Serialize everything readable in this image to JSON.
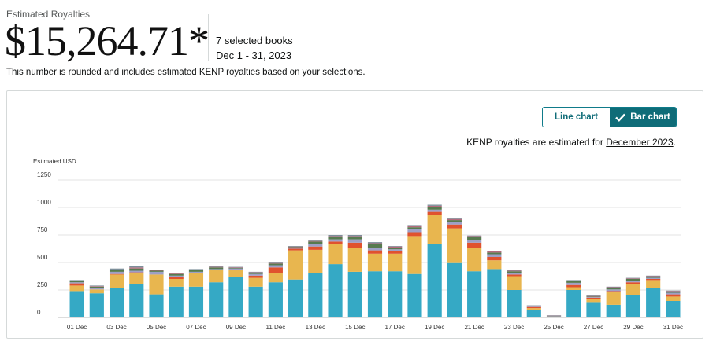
{
  "header": {
    "label": "Estimated Royalties",
    "amount": "$15,264.71*",
    "books": "7 selected books",
    "date_range": "Dec 1 - 31, 2023",
    "note": "This number is rounded and includes estimated KENP royalties based on your selections."
  },
  "toggle": {
    "line_label": "Line chart",
    "bar_label": "Bar chart",
    "active": "Bar chart"
  },
  "kenp_note": {
    "prefix": "KENP royalties are estimated for ",
    "link": "December 2023",
    "suffix": "."
  },
  "colors": {
    "teal_accent": "#0f6c78",
    "series": [
      "#35a9c5",
      "#e8b64f",
      "#e0522e",
      "#9d9fc6",
      "#577a4f",
      "#b46b7e",
      "#7c8f9a"
    ]
  },
  "chart_data": {
    "type": "bar",
    "stacked": true,
    "ylabel": "Estimated USD",
    "ylim": [
      0,
      1250
    ],
    "yticks": [
      0,
      250,
      500,
      750,
      1000,
      1250
    ],
    "grid": true,
    "categories": [
      "01 Dec",
      "02 Dec",
      "03 Dec",
      "04 Dec",
      "05 Dec",
      "06 Dec",
      "07 Dec",
      "08 Dec",
      "09 Dec",
      "10 Dec",
      "11 Dec",
      "12 Dec",
      "13 Dec",
      "14 Dec",
      "15 Dec",
      "16 Dec",
      "17 Dec",
      "18 Dec",
      "19 Dec",
      "20 Dec",
      "21 Dec",
      "22 Dec",
      "23 Dec",
      "24 Dec",
      "25 Dec",
      "26 Dec",
      "27 Dec",
      "28 Dec",
      "29 Dec",
      "30 Dec",
      "31 Dec"
    ],
    "xtick_labels": [
      "01 Dec",
      "03 Dec",
      "05 Dec",
      "07 Dec",
      "09 Dec",
      "11 Dec",
      "13 Dec",
      "15 Dec",
      "17 Dec",
      "19 Dec",
      "21 Dec",
      "23 Dec",
      "25 Dec",
      "27 Dec",
      "29 Dec",
      "31 Dec"
    ],
    "series": [
      {
        "color": "#35a9c5",
        "values": [
          240,
          220,
          270,
          300,
          210,
          280,
          280,
          320,
          370,
          280,
          320,
          345,
          400,
          485,
          415,
          420,
          420,
          395,
          670,
          495,
          420,
          440,
          250,
          70,
          5,
          250,
          140,
          115,
          200,
          265,
          150
        ]
      },
      {
        "color": "#e8b64f",
        "values": [
          50,
          35,
          120,
          100,
          180,
          70,
          120,
          110,
          60,
          80,
          85,
          265,
          215,
          180,
          220,
          160,
          160,
          345,
          260,
          315,
          215,
          80,
          125,
          15,
          3,
          25,
          30,
          120,
          100,
          75,
          40
        ]
      },
      {
        "color": "#e0522e",
        "values": [
          20,
          0,
          5,
          10,
          0,
          20,
          0,
          0,
          5,
          20,
          50,
          15,
          30,
          25,
          45,
          30,
          20,
          35,
          30,
          35,
          45,
          30,
          15,
          10,
          0,
          20,
          10,
          5,
          20,
          10,
          20
        ]
      },
      {
        "color": "#9d9fc6",
        "values": [
          10,
          15,
          20,
          15,
          25,
          10,
          15,
          10,
          10,
          15,
          20,
          5,
          25,
          20,
          30,
          25,
          20,
          25,
          20,
          20,
          25,
          25,
          15,
          5,
          4,
          20,
          5,
          15,
          15,
          10,
          15
        ]
      },
      {
        "color": "#577a4f",
        "values": [
          10,
          10,
          15,
          20,
          10,
          15,
          15,
          15,
          5,
          10,
          15,
          10,
          20,
          20,
          20,
          30,
          15,
          20,
          25,
          20,
          25,
          15,
          15,
          5,
          3,
          15,
          5,
          15,
          15,
          10,
          10
        ]
      },
      {
        "color": "#b46b7e",
        "values": [
          5,
          5,
          5,
          10,
          5,
          5,
          5,
          5,
          5,
          5,
          5,
          5,
          5,
          10,
          10,
          10,
          10,
          10,
          10,
          10,
          10,
          10,
          5,
          3,
          2,
          5,
          5,
          5,
          5,
          5,
          5
        ]
      },
      {
        "color": "#7c8f9a",
        "values": [
          5,
          5,
          10,
          10,
          5,
          5,
          5,
          5,
          5,
          5,
          5,
          5,
          5,
          10,
          10,
          10,
          5,
          10,
          10,
          10,
          5,
          5,
          5,
          2,
          3,
          5,
          5,
          5,
          5,
          5,
          5
        ]
      }
    ]
  }
}
